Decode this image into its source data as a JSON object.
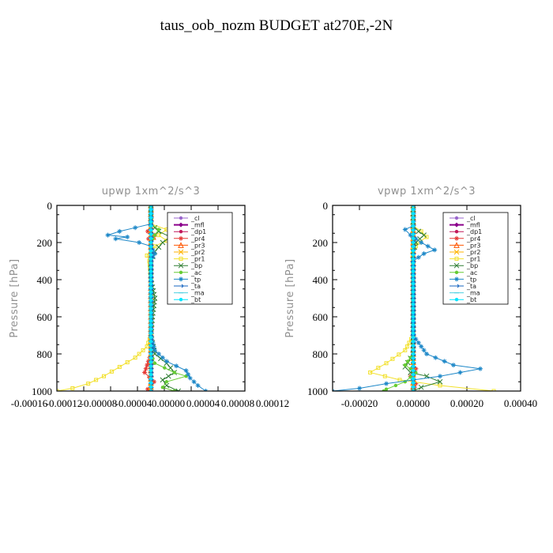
{
  "title": "taus_oob_nozm  BUDGET at270E,-2N",
  "chart_data": [
    {
      "type": "line",
      "title": "upwp   1xm^2/s^3",
      "ylabel": "Pressure [hPa]",
      "xlabel": "",
      "xlim": [
        -0.00012,
        0.00012
      ],
      "ylim": [
        1000,
        0
      ],
      "y_inverted": true,
      "x_ticks": [
        "-0.00016",
        "-0.00012",
        "-0.00008",
        "-0.00004",
        "0.00000",
        "0.00004",
        "0.00008",
        "0.00012"
      ],
      "y_ticks": [
        0,
        200,
        400,
        600,
        800,
        1000
      ],
      "legend_position": "upper-right",
      "series": [
        {
          "name": "_cl",
          "color": "#9966cc",
          "marker": "circle",
          "values": [
            [
              0,
              0
            ],
            [
              0,
              200
            ],
            [
              0,
              400
            ],
            [
              0,
              600
            ],
            [
              0,
              800
            ],
            [
              0,
              1000
            ]
          ]
        },
        {
          "name": "_mfl",
          "color": "#8b008b",
          "marker": "diamond",
          "values": [
            [
              0,
              0
            ],
            [
              0,
              200
            ],
            [
              0,
              400
            ],
            [
              0,
              600
            ],
            [
              0,
              800
            ],
            [
              0,
              1000
            ]
          ]
        },
        {
          "name": "_dp1",
          "color": "#c2185b",
          "marker": "circle",
          "values": [
            [
              0,
              0
            ],
            [
              0,
              500
            ],
            [
              0,
              1000
            ]
          ]
        },
        {
          "name": "_pr4",
          "color": "#e53935",
          "marker": "star",
          "values": [
            [
              0,
              0
            ],
            [
              0,
              120
            ],
            [
              -4e-06,
              140
            ],
            [
              5e-06,
              160
            ],
            [
              -3e-06,
              180
            ],
            [
              0,
              200
            ],
            [
              0,
              800
            ],
            [
              -8e-06,
              900
            ],
            [
              4e-06,
              950
            ],
            [
              -4e-06,
              990
            ],
            [
              0,
              1000
            ]
          ]
        },
        {
          "name": "_pr3",
          "color": "#ff5500",
          "marker": "triangle",
          "values": [
            [
              0,
              0
            ],
            [
              0,
              140
            ],
            [
              3e-06,
              170
            ],
            [
              0,
              200
            ],
            [
              0,
              1000
            ]
          ]
        },
        {
          "name": "_pr2",
          "color": "#ffb300",
          "marker": "x",
          "values": [
            [
              0,
              0
            ],
            [
              0,
              1000
            ]
          ]
        },
        {
          "name": "_pr1",
          "color": "#f2e02b",
          "marker": "square",
          "values": [
            [
              0,
              0
            ],
            [
              0,
              100
            ],
            [
              2e-05,
              130
            ],
            [
              1e-05,
              160
            ],
            [
              2e-05,
              190
            ],
            [
              5e-06,
              220
            ],
            [
              -5e-06,
              270
            ],
            [
              -2e-06,
              300
            ],
            [
              0,
              400
            ],
            [
              0,
              600
            ],
            [
              0,
              700
            ],
            [
              -5e-06,
              760
            ],
            [
              -2e-05,
              820
            ],
            [
              -4e-05,
              870
            ],
            [
              -6e-05,
              920
            ],
            [
              -8e-05,
              960
            ],
            [
              -0.0001,
              985
            ],
            [
              -0.00012,
              1000
            ]
          ]
        },
        {
          "name": "_bp",
          "color": "#2e7d32",
          "marker": "x",
          "values": [
            [
              0,
              0
            ],
            [
              0,
              100
            ],
            [
              1e-05,
              140
            ],
            [
              2.5e-05,
              170
            ],
            [
              1.5e-05,
              200
            ],
            [
              5e-06,
              250
            ],
            [
              0,
              300
            ],
            [
              0,
              400
            ],
            [
              5e-06,
              500
            ],
            [
              2e-06,
              600
            ],
            [
              0,
              700
            ],
            [
              5e-06,
              800
            ],
            [
              2e-05,
              850
            ],
            [
              3e-05,
              900
            ],
            [
              1.5e-05,
              940
            ],
            [
              2e-05,
              970
            ],
            [
              3.5e-05,
              1000
            ]
          ]
        },
        {
          "name": "_ac",
          "color": "#66cc33",
          "marker": "circle",
          "values": [
            [
              0,
              0
            ],
            [
              0,
              100
            ],
            [
              1e-05,
              130
            ],
            [
              5e-06,
              160
            ],
            [
              0,
              200
            ],
            [
              0,
              800
            ],
            [
              5e-06,
              850
            ],
            [
              3e-05,
              900
            ],
            [
              4.5e-05,
              920
            ],
            [
              2e-05,
              950
            ],
            [
              1.5e-05,
              980
            ],
            [
              3e-05,
              1000
            ]
          ]
        },
        {
          "name": "_tp",
          "color": "#1e88c8",
          "marker": "star",
          "values": [
            [
              0,
              0
            ],
            [
              0,
              100
            ],
            [
              -2e-05,
              120
            ],
            [
              -4e-05,
              140
            ],
            [
              -5.5e-05,
              160
            ],
            [
              -3e-05,
              170
            ],
            [
              -4.5e-05,
              180
            ],
            [
              -1.5e-05,
              200
            ],
            [
              0,
              220
            ],
            [
              5e-06,
              260
            ],
            [
              0,
              300
            ],
            [
              0,
              700
            ],
            [
              5e-06,
              780
            ],
            [
              2e-05,
              840
            ],
            [
              4.5e-05,
              890
            ],
            [
              5e-05,
              930
            ],
            [
              6e-05,
              970
            ],
            [
              7e-05,
              1000
            ]
          ]
        },
        {
          "name": "_ta",
          "color": "#1565c0",
          "marker": "arrow",
          "values": [
            [
              0,
              0
            ],
            [
              0,
              300
            ],
            [
              0,
              600
            ],
            [
              0,
              900
            ],
            [
              0,
              1000
            ]
          ]
        },
        {
          "name": "_ma",
          "color": "#4dd0e1",
          "marker": "dash",
          "values": [
            [
              0,
              0
            ],
            [
              0,
              1000
            ]
          ]
        },
        {
          "name": "_bt",
          "color": "#00e5ff",
          "marker": "circle",
          "values": [
            [
              0,
              0
            ],
            [
              0,
              1000
            ]
          ]
        }
      ]
    },
    {
      "type": "line",
      "title": "vpwp   1xm^2/s^3",
      "ylabel": "Pressure [hPa]",
      "xlabel": "",
      "xlim": [
        -0.0003,
        0.0004
      ],
      "ylim": [
        1000,
        0
      ],
      "y_inverted": true,
      "x_ticks": [
        "-0.00020",
        "0.00000",
        "0.00020",
        "0.00040"
      ],
      "y_ticks": [
        0,
        200,
        400,
        600,
        800,
        1000
      ],
      "legend_position": "upper-right",
      "series": [
        {
          "name": "_cl",
          "color": "#9966cc",
          "marker": "circle",
          "values": [
            [
              0,
              0
            ],
            [
              0,
              500
            ],
            [
              0,
              1000
            ]
          ]
        },
        {
          "name": "_mfl",
          "color": "#8b008b",
          "marker": "diamond",
          "values": [
            [
              0,
              0
            ],
            [
              0,
              200
            ],
            [
              0,
              400
            ],
            [
              0,
              600
            ],
            [
              0,
              800
            ],
            [
              0,
              1000
            ]
          ]
        },
        {
          "name": "_dp1",
          "color": "#c2185b",
          "marker": "circle",
          "values": [
            [
              0,
              0
            ],
            [
              0,
              500
            ],
            [
              0,
              1000
            ]
          ]
        },
        {
          "name": "_pr4",
          "color": "#e53935",
          "marker": "star",
          "values": [
            [
              0,
              0
            ],
            [
              0,
              850
            ],
            [
              1e-05,
              880
            ],
            [
              -1e-05,
              920
            ],
            [
              1e-05,
              960
            ],
            [
              0,
              1000
            ]
          ]
        },
        {
          "name": "_pr3",
          "color": "#ff5500",
          "marker": "triangle",
          "values": [
            [
              0,
              0
            ],
            [
              0,
              1000
            ]
          ]
        },
        {
          "name": "_pr2",
          "color": "#ffb300",
          "marker": "x",
          "values": [
            [
              0,
              0
            ],
            [
              0,
              1000
            ]
          ]
        },
        {
          "name": "_pr1",
          "color": "#f2e02b",
          "marker": "square",
          "values": [
            [
              0,
              0
            ],
            [
              0,
              110
            ],
            [
              3e-05,
              140
            ],
            [
              5e-05,
              170
            ],
            [
              2e-05,
              200
            ],
            [
              0,
              240
            ],
            [
              0,
              700
            ],
            [
              -3e-05,
              780
            ],
            [
              -0.0001,
              850
            ],
            [
              -0.00016,
              900
            ],
            [
              -5e-05,
              940
            ],
            [
              0.0001,
              970
            ],
            [
              0.0003,
              1000
            ]
          ]
        },
        {
          "name": "_bp",
          "color": "#2e7d32",
          "marker": "x",
          "values": [
            [
              0,
              0
            ],
            [
              0,
              110
            ],
            [
              2e-05,
              140
            ],
            [
              4e-05,
              160
            ],
            [
              1e-05,
              200
            ],
            [
              0,
              250
            ],
            [
              0,
              800
            ],
            [
              -3e-05,
              870
            ],
            [
              -1e-05,
              900
            ],
            [
              5e-05,
              920
            ],
            [
              0.0001,
              950
            ],
            [
              3e-05,
              980
            ],
            [
              0,
              1000
            ]
          ]
        },
        {
          "name": "_ac",
          "color": "#66cc33",
          "marker": "circle",
          "values": [
            [
              0,
              0
            ],
            [
              0,
              800
            ],
            [
              -3e-05,
              860
            ],
            [
              1e-05,
              900
            ],
            [
              -3e-05,
              950
            ],
            [
              -0.0001,
              990
            ],
            [
              -0.00011,
              1000
            ]
          ]
        },
        {
          "name": "_tp",
          "color": "#1e88c8",
          "marker": "star",
          "values": [
            [
              0,
              0
            ],
            [
              0,
              110
            ],
            [
              -3e-05,
              130
            ],
            [
              -1e-05,
              160
            ],
            [
              3e-05,
              200
            ],
            [
              8e-05,
              240
            ],
            [
              4e-05,
              260
            ],
            [
              0,
              300
            ],
            [
              0,
              700
            ],
            [
              5e-05,
              800
            ],
            [
              0.00015,
              860
            ],
            [
              0.00025,
              880
            ],
            [
              0.0001,
              920
            ],
            [
              -0.0001,
              960
            ],
            [
              -0.0002,
              985
            ],
            [
              -0.0003,
              1000
            ]
          ]
        },
        {
          "name": "_ta",
          "color": "#1565c0",
          "marker": "arrow",
          "values": [
            [
              0,
              0
            ],
            [
              0,
              500
            ],
            [
              0,
              1000
            ]
          ]
        },
        {
          "name": "_ma",
          "color": "#4dd0e1",
          "marker": "dash",
          "values": [
            [
              0,
              0
            ],
            [
              0,
              1000
            ]
          ]
        },
        {
          "name": "_bt",
          "color": "#00e5ff",
          "marker": "circle",
          "values": [
            [
              0,
              0
            ],
            [
              0,
              1000
            ]
          ]
        }
      ]
    }
  ]
}
